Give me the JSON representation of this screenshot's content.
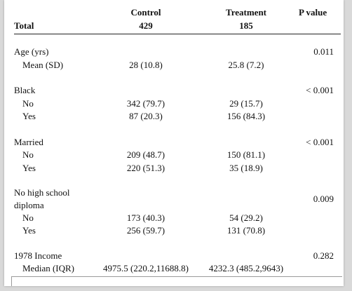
{
  "header": {
    "total_label": "Total",
    "control_label": "Control",
    "control_n": "429",
    "treatment_label": "Treatment",
    "treatment_n": "185",
    "pvalue_label": "P value"
  },
  "rows": [
    {
      "id": "age",
      "label": "Age (yrs)",
      "p": "0.011",
      "levels": [
        {
          "label": "Mean (SD)",
          "control": "28 (10.8)",
          "treatment": "25.8 (7.2)"
        }
      ]
    },
    {
      "id": "black",
      "label": "Black",
      "p": "< 0.001",
      "levels": [
        {
          "label": "No",
          "control": "342 (79.7)",
          "treatment": "29 (15.7)"
        },
        {
          "label": "Yes",
          "control": "87 (20.3)",
          "treatment": "156 (84.3)"
        }
      ]
    },
    {
      "id": "married",
      "label": "Married",
      "p": "< 0.001",
      "levels": [
        {
          "label": "No",
          "control": "209 (48.7)",
          "treatment": "150 (81.1)"
        },
        {
          "label": "Yes",
          "control": "220 (51.3)",
          "treatment": "35 (18.9)"
        }
      ]
    },
    {
      "id": "nodegree",
      "label_line1": "No high school",
      "label_line2": "diploma",
      "p": "0.009",
      "levels": [
        {
          "label": "No",
          "control": "173 (40.3)",
          "treatment": "54 (29.2)"
        },
        {
          "label": "Yes",
          "control": "256 (59.7)",
          "treatment": "131 (70.8)"
        }
      ]
    },
    {
      "id": "income",
      "label": "1978 Income",
      "p": "0.282",
      "levels": [
        {
          "label": "Median (IQR)",
          "control": "4975.5 (220.2,11688.8)",
          "treatment": "4232.3 (485.2,9643)"
        }
      ]
    }
  ]
}
